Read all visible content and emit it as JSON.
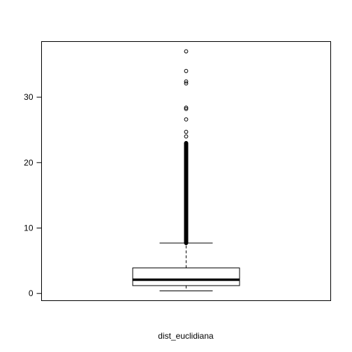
{
  "chart_data": {
    "type": "boxplot",
    "title": "",
    "xlabel": "dist_euclidiana",
    "ylabel": "",
    "ylim": [
      -1.1,
      38.5
    ],
    "yticks": [
      0,
      10,
      20,
      30
    ],
    "grid": false,
    "legend": "none",
    "box": {
      "min": 0.4,
      "q1": 1.2,
      "median": 2.1,
      "q3": 3.9,
      "whisker_low": 0.4,
      "whisker_high": 7.7
    },
    "outlier_dense_range": [
      7.7,
      23.0
    ],
    "outliers": [
      16.0,
      16.4,
      16.8,
      17.0,
      24.0,
      24.7,
      26.6,
      28.2,
      28.4,
      32.1,
      32.4,
      34.0,
      37.0
    ],
    "colors": {
      "line": "#000000",
      "background": "#ffffff"
    }
  }
}
